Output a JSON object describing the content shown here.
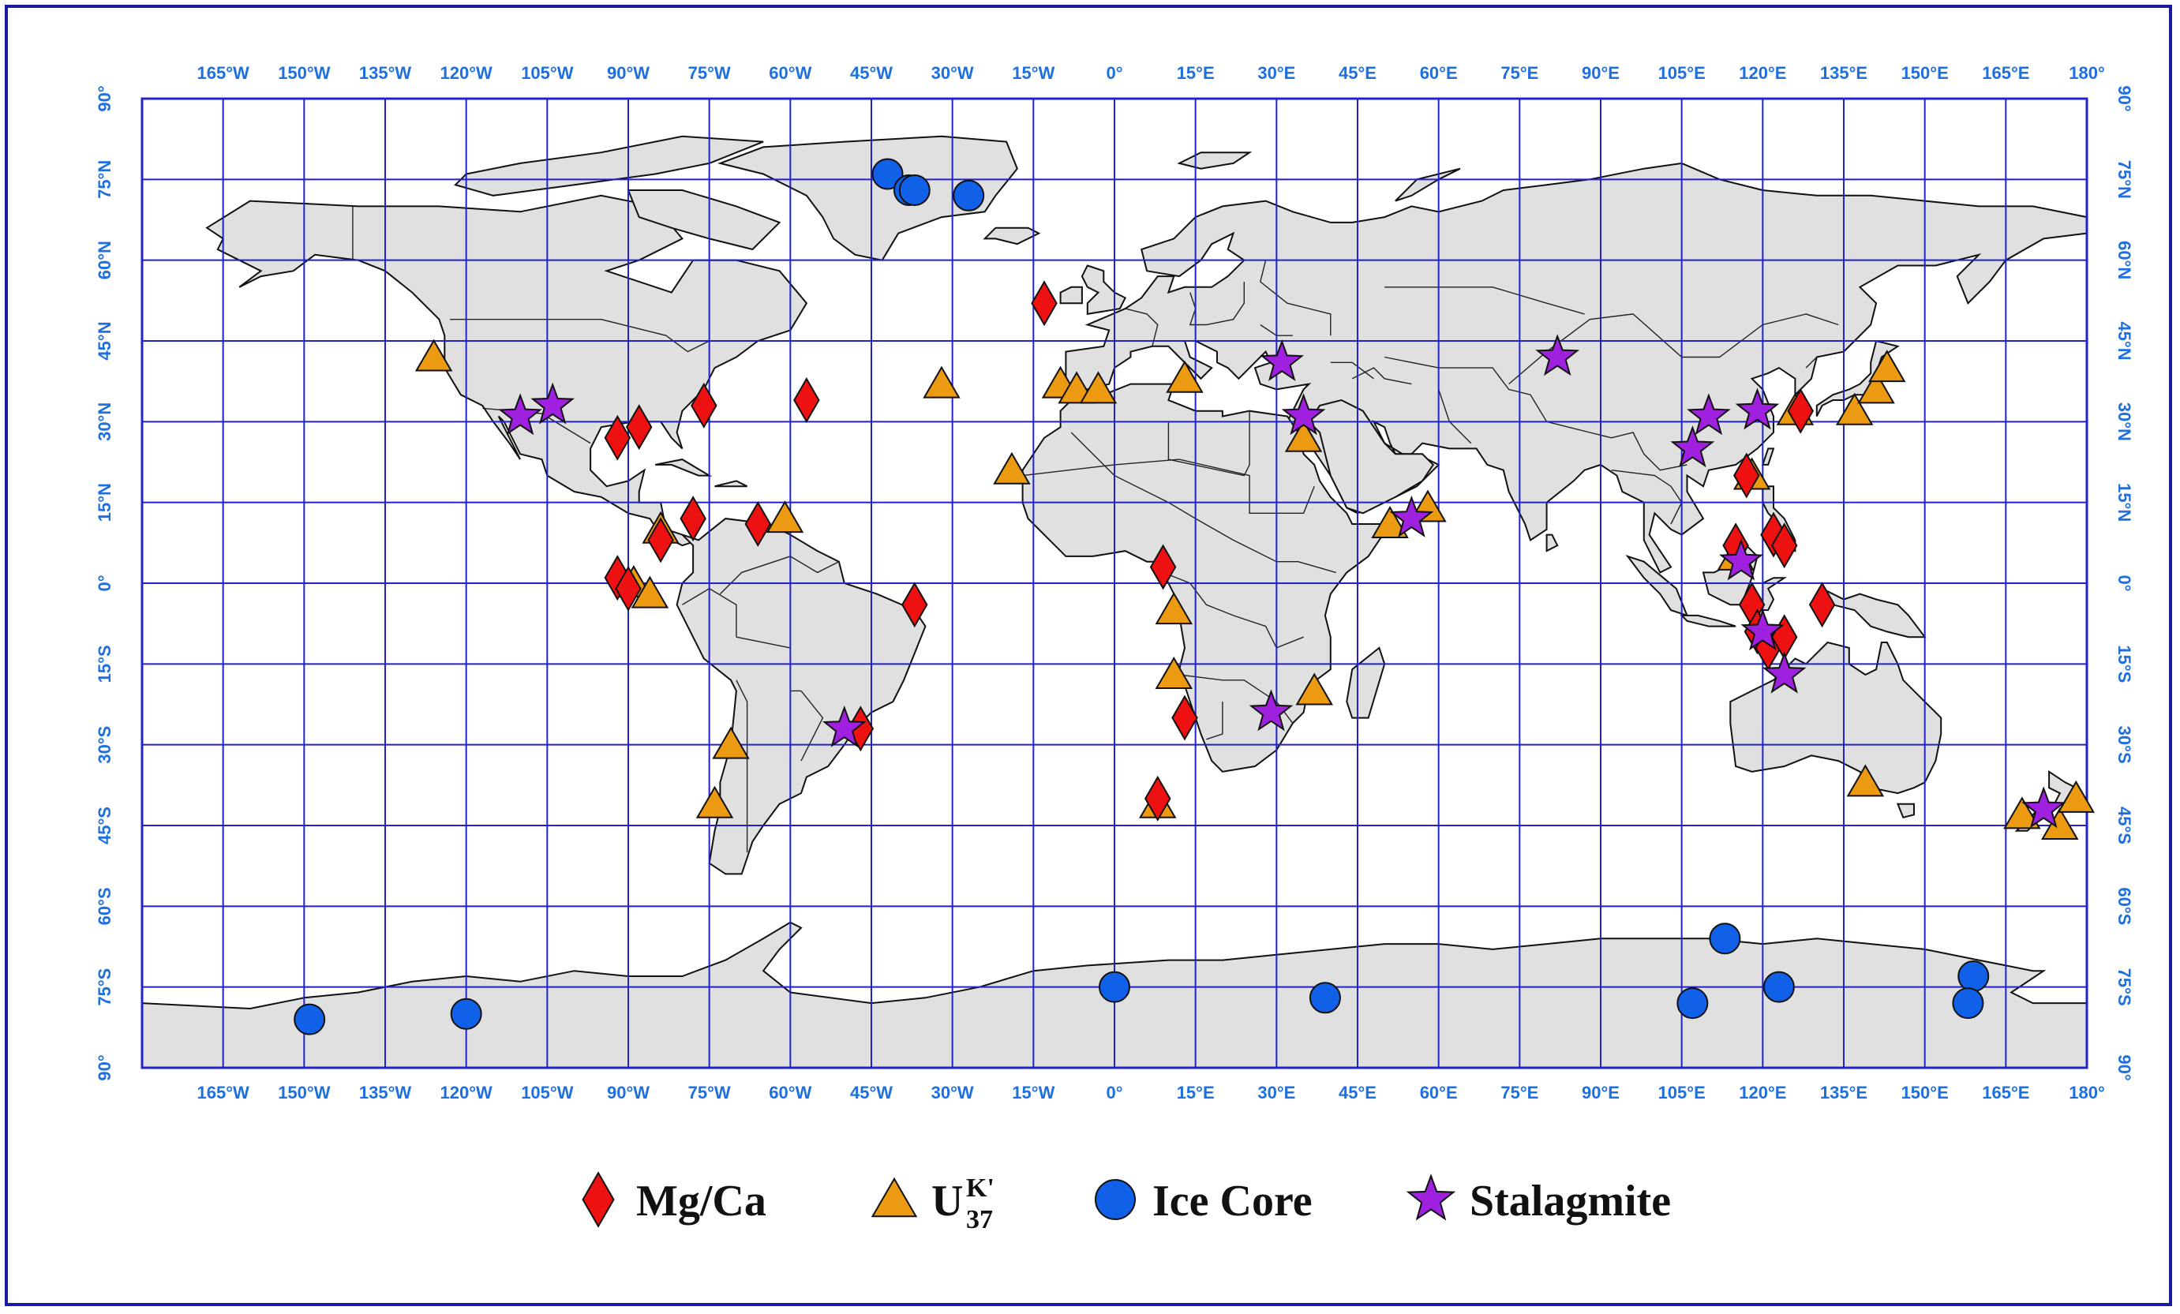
{
  "map": {
    "lon_ticks": [
      "165°W",
      "150°W",
      "135°W",
      "120°W",
      "105°W",
      "90°W",
      "75°W",
      "60°W",
      "45°W",
      "30°W",
      "15°W",
      "0°",
      "15°E",
      "30°E",
      "45°E",
      "60°E",
      "75°E",
      "90°E",
      "105°E",
      "120°E",
      "135°E",
      "150°E",
      "165°E",
      "180°"
    ],
    "lat_ticks": [
      "90°",
      "75°N",
      "60°N",
      "45°N",
      "30°N",
      "15°N",
      "0°",
      "15°S",
      "30°S",
      "45°S",
      "60°S",
      "75°S",
      "90°"
    ],
    "colors": {
      "grid": "#2222cc",
      "land": "#e0e0e0",
      "coast": "#111111",
      "tick_text": "#1e6fe0",
      "frame": "#1a1aa0"
    },
    "proxies": [
      {
        "key": "mgca",
        "label": "Mg/Ca",
        "shape": "diamond",
        "color": "#ee1111"
      },
      {
        "key": "uk37",
        "label": "U",
        "sup": "K'",
        "sub": "37",
        "shape": "triangle",
        "color": "#eb9a12"
      },
      {
        "key": "ice",
        "label": "Ice Core",
        "shape": "circle",
        "color": "#1060e8"
      },
      {
        "key": "stal",
        "label": "Stalagmite",
        "shape": "star",
        "color": "#a020e0"
      }
    ],
    "sites": {
      "mgca": [
        [
          -13,
          52
        ],
        [
          -57,
          34
        ],
        [
          -76,
          33
        ],
        [
          -92,
          27
        ],
        [
          -88,
          29
        ],
        [
          -84,
          8
        ],
        [
          -78,
          12
        ],
        [
          -66,
          11
        ],
        [
          -92,
          1
        ],
        [
          -90,
          -1
        ],
        [
          -47,
          -27
        ],
        [
          -37,
          -4
        ],
        [
          9,
          3
        ],
        [
          13,
          -25
        ],
        [
          8,
          -40
        ],
        [
          117,
          20
        ],
        [
          115,
          7
        ],
        [
          118,
          -4
        ],
        [
          119,
          -9
        ],
        [
          121,
          -12
        ],
        [
          124,
          -10
        ],
        [
          122,
          9
        ],
        [
          124,
          7
        ],
        [
          131,
          -4
        ],
        [
          127,
          32
        ]
      ],
      "uk37": [
        [
          -126,
          42
        ],
        [
          -32,
          37
        ],
        [
          -10,
          37
        ],
        [
          -7,
          36
        ],
        [
          -3,
          36
        ],
        [
          13,
          38
        ],
        [
          -19,
          21
        ],
        [
          -61,
          12
        ],
        [
          -84,
          10
        ],
        [
          -89,
          0
        ],
        [
          -86,
          -2
        ],
        [
          -71,
          -30
        ],
        [
          -74,
          -41
        ],
        [
          11,
          -5
        ],
        [
          11,
          -17
        ],
        [
          35,
          27
        ],
        [
          37,
          -20
        ],
        [
          51,
          11
        ],
        [
          58,
          14
        ],
        [
          115,
          5
        ],
        [
          118,
          20
        ],
        [
          126,
          32
        ],
        [
          137,
          32
        ],
        [
          141,
          36
        ],
        [
          143,
          40
        ],
        [
          139,
          -37
        ],
        [
          168,
          -43
        ],
        [
          175,
          -45
        ],
        [
          178,
          -40
        ],
        [
          8,
          -41
        ]
      ],
      "ice": [
        [
          -42,
          76
        ],
        [
          -38,
          73
        ],
        [
          -37,
          73
        ],
        [
          -27,
          72
        ],
        [
          -149,
          -81
        ],
        [
          -120,
          -80
        ],
        [
          0,
          -75
        ],
        [
          39,
          -77
        ],
        [
          107,
          -78
        ],
        [
          113,
          -66
        ],
        [
          123,
          -75
        ],
        [
          159,
          -73
        ],
        [
          158,
          -78
        ]
      ],
      "stal": [
        [
          -110,
          31
        ],
        [
          -104,
          33
        ],
        [
          -50,
          -27
        ],
        [
          31,
          41
        ],
        [
          35,
          31
        ],
        [
          29,
          -24
        ],
        [
          82,
          42
        ],
        [
          55,
          12
        ],
        [
          119,
          32
        ],
        [
          110,
          31
        ],
        [
          107,
          25
        ],
        [
          116,
          4
        ],
        [
          120,
          -9
        ],
        [
          124,
          -17
        ],
        [
          172,
          -42
        ]
      ]
    }
  }
}
